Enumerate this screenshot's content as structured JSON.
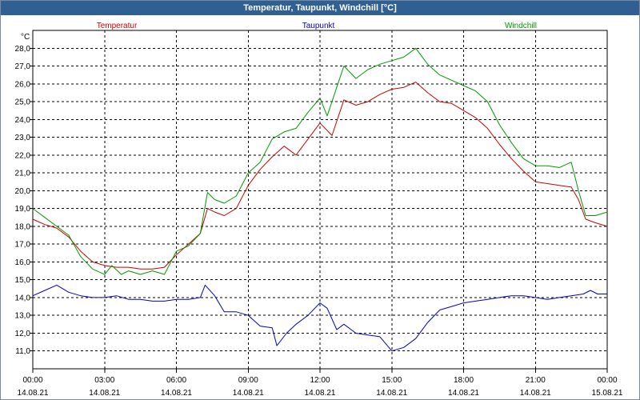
{
  "window": {
    "title": "Temperatur, Taupunkt, Windchill [°C]"
  },
  "chart_data": {
    "type": "line",
    "unit_label": "°C",
    "ylim": [
      10.0,
      29.0
    ],
    "y_ticks": [
      11.0,
      12.0,
      13.0,
      14.0,
      15.0,
      16.0,
      17.0,
      18.0,
      19.0,
      20.0,
      21.0,
      22.0,
      23.0,
      24.0,
      25.0,
      26.0,
      27.0,
      28.0
    ],
    "y_tick_labels": [
      "11,0",
      "12,0",
      "13,0",
      "14,0",
      "15,0",
      "16,0",
      "17,0",
      "18,0",
      "19,0",
      "20,0",
      "21,0",
      "22,0",
      "23,0",
      "24,0",
      "25,0",
      "26,0",
      "27,0",
      "28,0"
    ],
    "xlim": [
      0,
      24
    ],
    "x_ticks": [
      0,
      3,
      6,
      9,
      12,
      15,
      18,
      21,
      24
    ],
    "x_tick_labels": [
      {
        "time": "00:00",
        "date": "14.08.21"
      },
      {
        "time": "03:00",
        "date": "14.08.21"
      },
      {
        "time": "06:00",
        "date": "14.08.21"
      },
      {
        "time": "09:00",
        "date": "14.08.21"
      },
      {
        "time": "12:00",
        "date": "14.08.21"
      },
      {
        "time": "15:00",
        "date": "14.08.21"
      },
      {
        "time": "18:00",
        "date": "14.08.21"
      },
      {
        "time": "21:00",
        "date": "14.08.21"
      },
      {
        "time": "00:00",
        "date": "15.08.21"
      }
    ],
    "grid": true,
    "legend_placement": "top",
    "series": [
      {
        "name": "Temperatur",
        "color": "#cc0000",
        "points": [
          [
            0,
            18.4
          ],
          [
            0.5,
            18.1
          ],
          [
            1,
            17.9
          ],
          [
            1.5,
            17.4
          ],
          [
            2,
            16.6
          ],
          [
            2.5,
            16.0
          ],
          [
            3,
            15.8
          ],
          [
            3.5,
            15.7
          ],
          [
            4,
            15.7
          ],
          [
            4.5,
            15.6
          ],
          [
            5,
            15.6
          ],
          [
            5.5,
            15.7
          ],
          [
            6,
            16.4
          ],
          [
            6.5,
            17.0
          ],
          [
            7,
            17.6
          ],
          [
            7.3,
            19.0
          ],
          [
            7.6,
            18.8
          ],
          [
            8,
            18.6
          ],
          [
            8.5,
            19.0
          ],
          [
            9,
            20.3
          ],
          [
            9.5,
            21.2
          ],
          [
            10,
            21.9
          ],
          [
            10.5,
            22.5
          ],
          [
            11,
            22.0
          ],
          [
            11.5,
            22.9
          ],
          [
            12,
            23.8
          ],
          [
            12.5,
            23.1
          ],
          [
            13,
            25.1
          ],
          [
            13.5,
            24.8
          ],
          [
            14,
            25.0
          ],
          [
            14.5,
            25.4
          ],
          [
            15,
            25.7
          ],
          [
            15.5,
            25.8
          ],
          [
            16,
            26.1
          ],
          [
            16.5,
            25.5
          ],
          [
            17,
            25.0
          ],
          [
            17.5,
            24.9
          ],
          [
            18,
            24.5
          ],
          [
            18.5,
            24.1
          ],
          [
            19,
            23.5
          ],
          [
            19.5,
            22.6
          ],
          [
            20,
            21.8
          ],
          [
            20.5,
            21.1
          ],
          [
            21,
            20.5
          ],
          [
            21.5,
            20.4
          ],
          [
            22,
            20.3
          ],
          [
            22.5,
            20.2
          ],
          [
            22.8,
            19.5
          ],
          [
            23.1,
            18.4
          ],
          [
            23.5,
            18.2
          ],
          [
            24,
            18.0
          ]
        ]
      },
      {
        "name": "Taupunkt",
        "color": "#0000cc",
        "points": [
          [
            0,
            14.1
          ],
          [
            0.5,
            14.4
          ],
          [
            1,
            14.7
          ],
          [
            1.5,
            14.3
          ],
          [
            2,
            14.1
          ],
          [
            2.5,
            14.0
          ],
          [
            3,
            14.0
          ],
          [
            3.5,
            14.1
          ],
          [
            4,
            13.9
          ],
          [
            4.5,
            13.9
          ],
          [
            5,
            13.8
          ],
          [
            5.5,
            13.8
          ],
          [
            6,
            13.9
          ],
          [
            6.5,
            13.9
          ],
          [
            7,
            14.0
          ],
          [
            7.2,
            14.7
          ],
          [
            7.6,
            14.1
          ],
          [
            8,
            13.2
          ],
          [
            8.5,
            13.2
          ],
          [
            9,
            13.0
          ],
          [
            9.5,
            12.4
          ],
          [
            10,
            12.3
          ],
          [
            10.2,
            11.3
          ],
          [
            10.6,
            12.0
          ],
          [
            11,
            12.5
          ],
          [
            11.5,
            13.0
          ],
          [
            12,
            13.7
          ],
          [
            12.3,
            13.4
          ],
          [
            12.7,
            12.2
          ],
          [
            13,
            12.5
          ],
          [
            13.5,
            12.0
          ],
          [
            14,
            11.9
          ],
          [
            14.5,
            11.8
          ],
          [
            15,
            11.0
          ],
          [
            15.5,
            11.2
          ],
          [
            16,
            11.7
          ],
          [
            16.5,
            12.6
          ],
          [
            17,
            13.3
          ],
          [
            17.5,
            13.5
          ],
          [
            18,
            13.7
          ],
          [
            18.5,
            13.8
          ],
          [
            19,
            13.9
          ],
          [
            19.5,
            14.0
          ],
          [
            20,
            14.1
          ],
          [
            20.5,
            14.1
          ],
          [
            21,
            14.0
          ],
          [
            21.5,
            13.9
          ],
          [
            22,
            14.0
          ],
          [
            22.5,
            14.1
          ],
          [
            23,
            14.2
          ],
          [
            23.3,
            14.4
          ],
          [
            23.6,
            14.2
          ],
          [
            24,
            14.2
          ]
        ]
      },
      {
        "name": "Windchill",
        "color": "#009900",
        "points": [
          [
            0,
            19.0
          ],
          [
            0.5,
            18.5
          ],
          [
            1,
            18.0
          ],
          [
            1.5,
            17.5
          ],
          [
            2,
            16.3
          ],
          [
            2.5,
            15.6
          ],
          [
            3,
            15.3
          ],
          [
            3.3,
            15.8
          ],
          [
            3.7,
            15.3
          ],
          [
            4,
            15.5
          ],
          [
            4.5,
            15.3
          ],
          [
            5,
            15.5
          ],
          [
            5.5,
            15.3
          ],
          [
            6,
            16.6
          ],
          [
            6.5,
            16.9
          ],
          [
            7,
            17.6
          ],
          [
            7.3,
            19.9
          ],
          [
            7.6,
            19.5
          ],
          [
            8,
            19.3
          ],
          [
            8.5,
            19.7
          ],
          [
            9,
            21.0
          ],
          [
            9.5,
            21.6
          ],
          [
            10,
            22.9
          ],
          [
            10.5,
            23.3
          ],
          [
            11,
            23.5
          ],
          [
            11.5,
            24.4
          ],
          [
            12,
            25.2
          ],
          [
            12.3,
            24.2
          ],
          [
            12.7,
            25.8
          ],
          [
            13,
            27.0
          ],
          [
            13.5,
            26.3
          ],
          [
            14,
            26.8
          ],
          [
            14.5,
            27.1
          ],
          [
            15,
            27.3
          ],
          [
            15.5,
            27.5
          ],
          [
            16,
            28.0
          ],
          [
            16.5,
            27.1
          ],
          [
            17,
            26.5
          ],
          [
            17.5,
            26.2
          ],
          [
            18,
            25.9
          ],
          [
            18.5,
            25.6
          ],
          [
            19,
            25.0
          ],
          [
            19.5,
            23.7
          ],
          [
            20,
            22.7
          ],
          [
            20.5,
            21.8
          ],
          [
            21,
            21.4
          ],
          [
            21.5,
            21.4
          ],
          [
            22,
            21.3
          ],
          [
            22.5,
            21.6
          ],
          [
            22.8,
            20.0
          ],
          [
            23.1,
            18.6
          ],
          [
            23.5,
            18.6
          ],
          [
            24,
            18.8
          ]
        ]
      }
    ]
  }
}
